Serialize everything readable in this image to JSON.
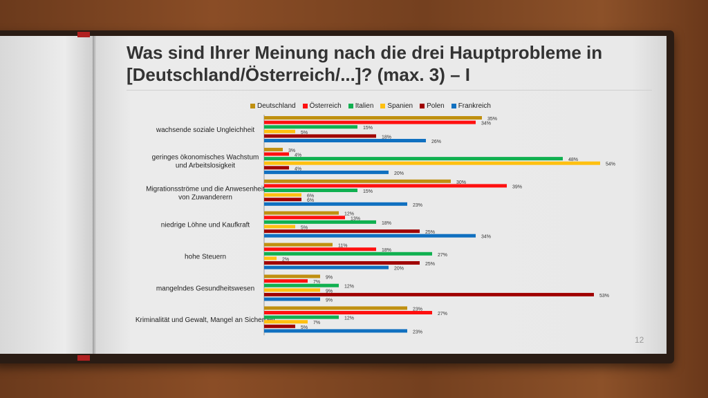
{
  "slide": {
    "title": "Was sind Ihrer Meinung nach die drei Hauptprobleme in [Deutschland/Österreich/...]? (max. 3) – I",
    "page_number": "12"
  },
  "chart_data": {
    "type": "bar",
    "orientation": "horizontal",
    "title": "Was sind Ihrer Meinung nach die drei Hauptprobleme in [Deutschland/Österreich/...]? (max. 3) – I",
    "legend_position": "top",
    "xlim": [
      0,
      60
    ],
    "unit": "%",
    "categories": [
      "wachsende soziale Ungleichheit",
      "geringes ökonomisches Wachstum und Arbeitslosigkeit",
      "Migrationsströme und die Anwesenheit von Zuwanderern",
      "niedrige Löhne und Kaufkraft",
      "hohe Steuern",
      "mangelndes Gesundheitswesen",
      "Kriminalität und Gewalt, Mangel an Sicherheit"
    ],
    "category_lines": [
      [
        "wachsende soziale Ungleichheit"
      ],
      [
        "geringes ökonomisches Wachstum",
        "und Arbeitslosigkeit"
      ],
      [
        "Migrationsströme und die Anwesenheit",
        "von Zuwanderern"
      ],
      [
        "niedrige Löhne und Kaufkraft"
      ],
      [
        "hohe Steuern"
      ],
      [
        "mangelndes Gesundheitswesen"
      ],
      [
        "Kriminalität und Gewalt, Mangel an Sicherheit"
      ]
    ],
    "series": [
      {
        "name": "Deutschland",
        "color": "#c09010",
        "values": [
          35,
          3,
          30,
          12,
          11,
          9,
          23
        ]
      },
      {
        "name": "Österreich",
        "color": "#ff1010",
        "values": [
          34,
          4,
          39,
          13,
          18,
          7,
          27
        ]
      },
      {
        "name": "Italien",
        "color": "#10b050",
        "values": [
          15,
          48,
          15,
          18,
          27,
          12,
          12
        ]
      },
      {
        "name": "Spanien",
        "color": "#ffc010",
        "values": [
          5,
          54,
          6,
          5,
          2,
          9,
          7
        ]
      },
      {
        "name": "Polen",
        "color": "#a00000",
        "values": [
          18,
          4,
          6,
          25,
          25,
          53,
          5
        ]
      },
      {
        "name": "Frankreich",
        "color": "#1070c0",
        "values": [
          26,
          20,
          23,
          34,
          20,
          9,
          23
        ]
      }
    ]
  }
}
